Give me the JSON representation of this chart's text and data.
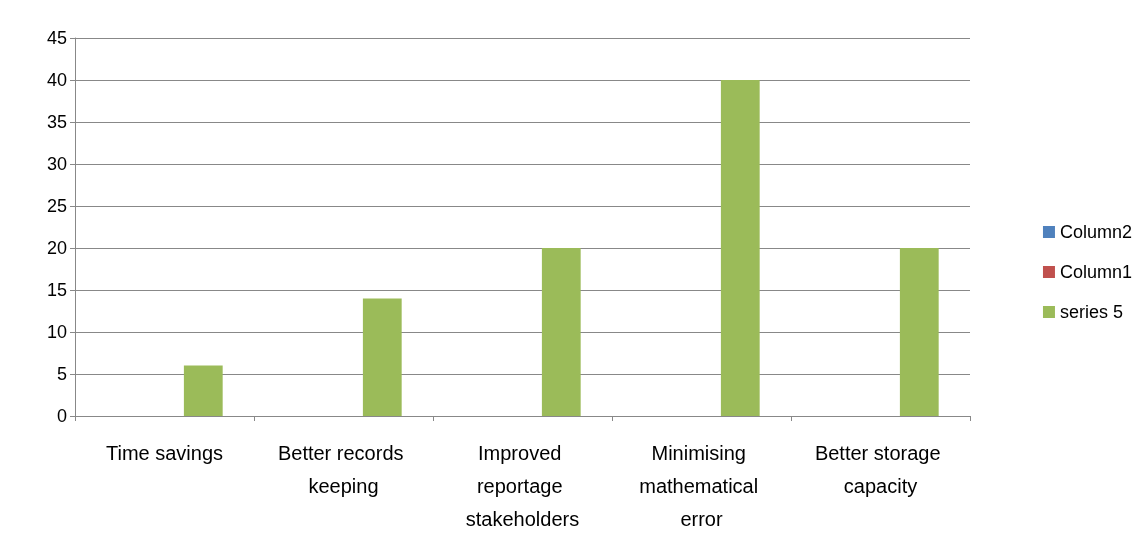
{
  "chart_data": {
    "type": "bar",
    "categories": [
      "Time savings",
      "Better records keeping",
      "Improved reportage stakeholders",
      "Minimising mathematical error",
      "Better storage capacity"
    ],
    "series": [
      {
        "name": "Column2",
        "color": "#4f81bd",
        "values": [
          null,
          null,
          null,
          null,
          null
        ]
      },
      {
        "name": "Column1",
        "color": "#c0504d",
        "values": [
          null,
          null,
          null,
          null,
          null
        ]
      },
      {
        "name": "series 5",
        "color": "#9bbb59",
        "values": [
          6,
          14,
          20,
          40,
          20
        ]
      }
    ],
    "ylim": [
      0,
      45
    ],
    "yticks": [
      0,
      5,
      10,
      15,
      20,
      25,
      30,
      35,
      40,
      45
    ],
    "grid": "y",
    "legend": "right"
  }
}
